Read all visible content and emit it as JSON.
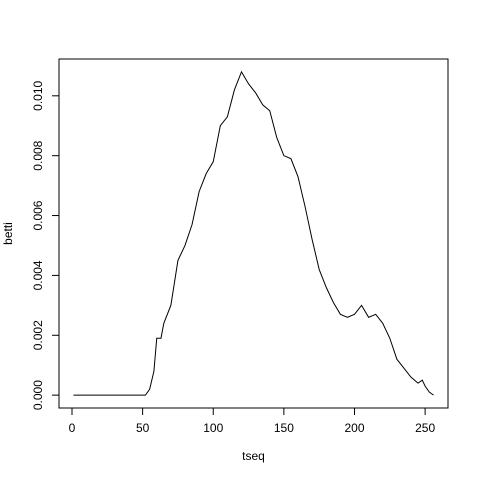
{
  "chart_data": {
    "type": "line",
    "x_label": "tseq",
    "y_label": "betti",
    "x": [
      1,
      10,
      20,
      30,
      40,
      50,
      52,
      55,
      58,
      60,
      63,
      65,
      70,
      75,
      80,
      85,
      90,
      95,
      100,
      105,
      110,
      115,
      120,
      125,
      130,
      135,
      140,
      145,
      150,
      155,
      160,
      165,
      170,
      175,
      180,
      185,
      190,
      195,
      200,
      205,
      210,
      215,
      220,
      225,
      230,
      235,
      240,
      245,
      248,
      250,
      253,
      256
    ],
    "values": [
      0,
      0,
      0,
      0,
      0,
      0,
      0,
      0.0002,
      0.0008,
      0.0019,
      0.0019,
      0.0024,
      0.003,
      0.0045,
      0.005,
      0.0057,
      0.0068,
      0.0074,
      0.0078,
      0.009,
      0.0093,
      0.0102,
      0.0108,
      0.0104,
      0.0101,
      0.0097,
      0.0095,
      0.0086,
      0.008,
      0.0079,
      0.0073,
      0.0063,
      0.0052,
      0.0042,
      0.0036,
      0.0031,
      0.0027,
      0.0026,
      0.0027,
      0.003,
      0.0026,
      0.0027,
      0.0024,
      0.0019,
      0.0012,
      0.0009,
      0.0006,
      0.0004,
      0.0005,
      0.0003,
      0.0001,
      0
    ],
    "color": "#000000",
    "xlim": [
      -9.2,
      266.2
    ],
    "xticks": [
      0,
      50,
      100,
      150,
      200,
      250
    ],
    "ylim": [
      -0.00043,
      0.01123
    ],
    "yticks": [
      {
        "value": 0,
        "label": "0.000"
      },
      {
        "value": 0.002,
        "label": "0.002"
      },
      {
        "value": 0.004,
        "label": "0.004"
      },
      {
        "value": 0.006,
        "label": "0.006"
      },
      {
        "value": 0.008,
        "label": "0.008"
      },
      {
        "value": 0.01,
        "label": "0.010"
      }
    ],
    "grid": false
  }
}
